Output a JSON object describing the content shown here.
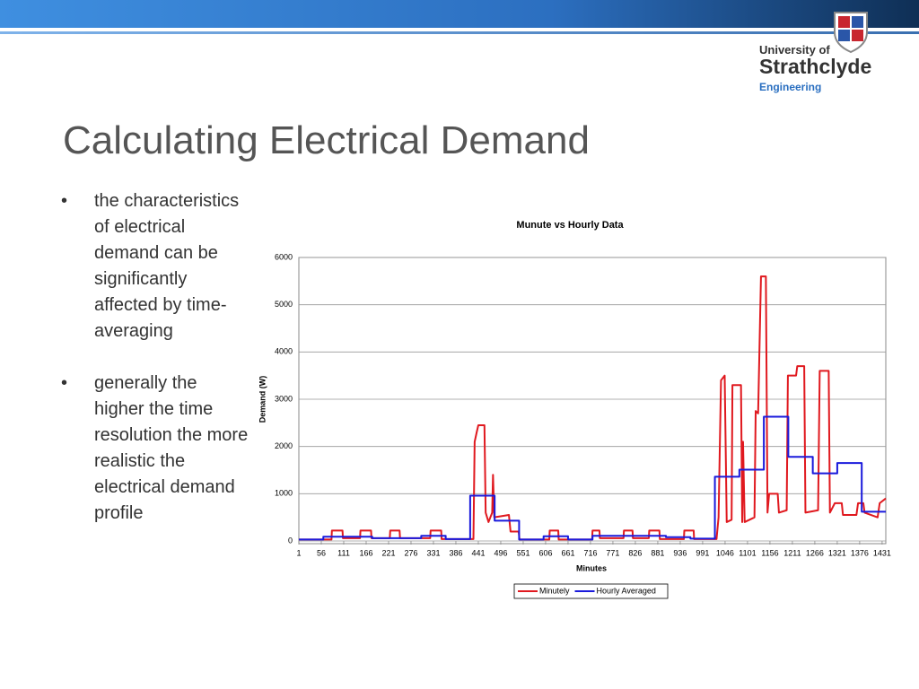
{
  "header": {
    "logo": [
      "University of",
      "Strathclyde",
      "Engineering"
    ],
    "title": "Calculating Electrical Demand"
  },
  "bullets": [
    "the characteristics of electrical demand can be significantly affected by time-averaging",
    "generally the higher the time resolution the more realistic the electrical demand profile"
  ],
  "chart_data": {
    "type": "line",
    "title": "Munute vs Hourly Data",
    "x_label": "Minutes",
    "y_label": "Demand (W)",
    "xlim": [
      1,
      1440
    ],
    "xticks": [
      1,
      56,
      111,
      166,
      221,
      276,
      331,
      386,
      441,
      496,
      551,
      606,
      661,
      716,
      771,
      826,
      881,
      936,
      991,
      1046,
      1101,
      1156,
      1211,
      1266,
      1321,
      1376,
      1431
    ],
    "ylim": [
      0,
      6000
    ],
    "yticks": [
      0,
      1000,
      2000,
      3000,
      4000,
      5000,
      6000
    ],
    "grid": true,
    "legend": "bottom",
    "series": [
      {
        "name": "Minutely",
        "color": "#e0191f",
        "x": [
          1,
          81,
          82,
          108,
          109,
          151,
          152,
          178,
          179,
          224,
          225,
          248,
          249,
          323,
          324,
          350,
          351,
          429,
          432,
          437,
          441,
          456,
          459,
          466,
          475,
          477,
          480,
          516,
          520,
          540,
          542,
          615,
          616,
          637,
          638,
          720,
          721,
          738,
          739,
          797,
          798,
          819,
          820,
          859,
          860,
          885,
          886,
          945,
          946,
          969,
          970,
          1025,
          1030,
          1036,
          1045,
          1050,
          1062,
          1064,
          1085,
          1088,
          1090,
          1094,
          1118,
          1121,
          1127,
          1134,
          1146,
          1150,
          1154,
          1175,
          1178,
          1197,
          1200,
          1220,
          1223,
          1240,
          1243,
          1274,
          1278,
          1300,
          1303,
          1315,
          1332,
          1335,
          1368,
          1372,
          1385,
          1388,
          1420,
          1425,
          1440
        ],
        "values": [
          30,
          30,
          220,
          220,
          60,
          60,
          220,
          220,
          60,
          60,
          220,
          220,
          60,
          60,
          220,
          220,
          40,
          40,
          2100,
          2300,
          2450,
          2450,
          600,
          400,
          600,
          1400,
          500,
          550,
          200,
          200,
          30,
          30,
          220,
          220,
          30,
          30,
          220,
          220,
          60,
          60,
          220,
          220,
          60,
          60,
          220,
          220,
          40,
          40,
          220,
          220,
          40,
          40,
          500,
          3400,
          3500,
          400,
          450,
          3300,
          3300,
          400,
          2100,
          400,
          500,
          2750,
          2700,
          5600,
          5600,
          600,
          1000,
          1000,
          600,
          650,
          3500,
          3500,
          3700,
          3700,
          600,
          650,
          3600,
          3600,
          600,
          800,
          800,
          550,
          550,
          800,
          800,
          600,
          500,
          800,
          900
        ]
      },
      {
        "name": "Hourly Averaged",
        "color": "#1a1adc",
        "step": true,
        "x": [
          1,
          61,
          121,
          181,
          241,
          301,
          361,
          421,
          481,
          541,
          601,
          661,
          721,
          781,
          841,
          901,
          961,
          1021,
          1081,
          1141,
          1201,
          1261,
          1321,
          1381
        ],
        "values": [
          30,
          90,
          90,
          60,
          60,
          110,
          40,
          960,
          430,
          30,
          100,
          30,
          110,
          110,
          110,
          80,
          50,
          1360,
          1510,
          2630,
          1780,
          1430,
          1650,
          620
        ]
      }
    ]
  }
}
